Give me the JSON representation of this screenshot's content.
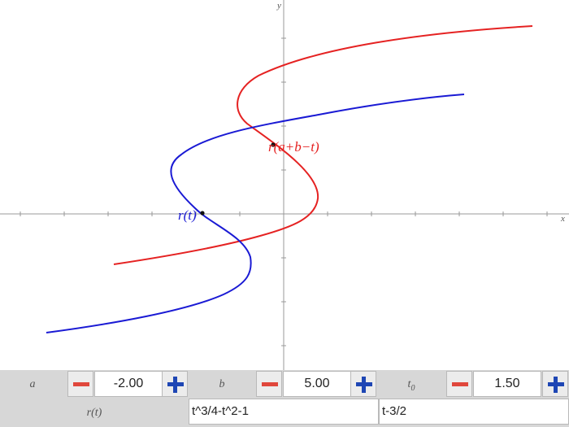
{
  "graph": {
    "x_axis_label": "x",
    "y_axis_label": "y",
    "blue_curve_label": "r(t)",
    "red_curve_label": "r(a+b−t)",
    "colors": {
      "blue": "#1a1ad4",
      "red": "#e52222",
      "axis": "#888888"
    }
  },
  "controls": {
    "a": {
      "label": "a",
      "value": "-2.00"
    },
    "b": {
      "label": "b",
      "value": "5.00"
    },
    "t0": {
      "label": "t",
      "subscript": "0",
      "value": "1.50"
    },
    "r": {
      "label": "r(t)",
      "expr1": "t^3/4-t^2-1",
      "expr2": "t-3/2"
    }
  }
}
